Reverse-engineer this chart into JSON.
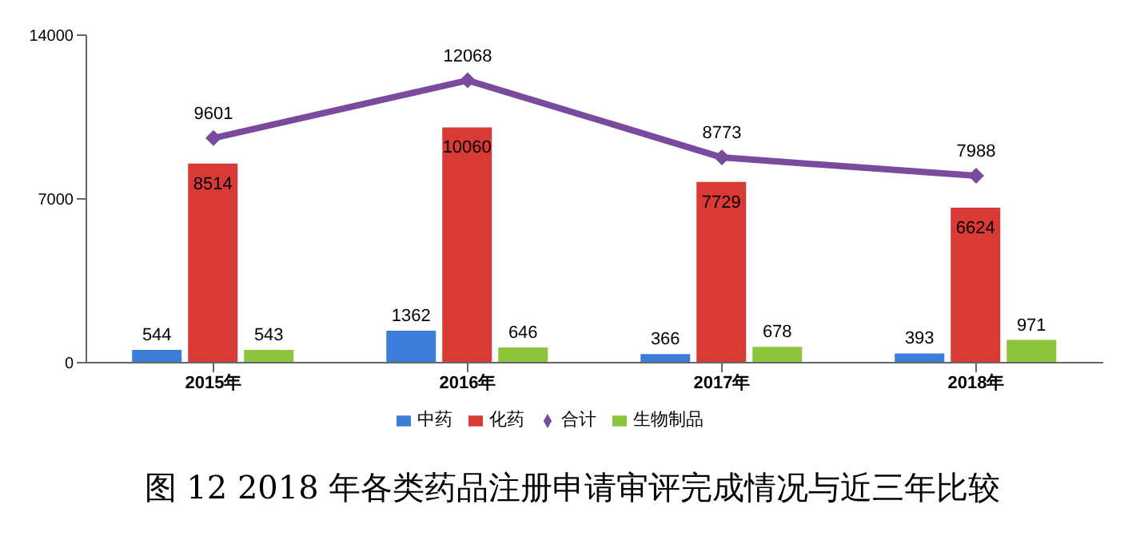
{
  "chart_data": {
    "type": "bar",
    "title": "图 12   2018 年各类药品注册申请审评完成情况与近三年比较",
    "categories": [
      "2015年",
      "2016年",
      "2017年",
      "2018年"
    ],
    "series": [
      {
        "name": "中药",
        "color": "#3b7dd8",
        "values": [
          544,
          1362,
          366,
          393
        ]
      },
      {
        "name": "化药",
        "color": "#d93a36",
        "values": [
          8514,
          10060,
          7729,
          6624
        ]
      },
      {
        "name": "生物制品",
        "color": "#8cc43c",
        "values": [
          543,
          646,
          678,
          971
        ]
      },
      {
        "name": "合计",
        "type": "line",
        "color": "#7a4a9e",
        "values": [
          9601,
          12068,
          8773,
          7988
        ]
      }
    ],
    "ylim": [
      0,
      14000
    ],
    "yticks": [
      0,
      7000,
      14000
    ],
    "data_labels": true,
    "legend": "bottom",
    "marker": "diamond",
    "grid": false
  }
}
